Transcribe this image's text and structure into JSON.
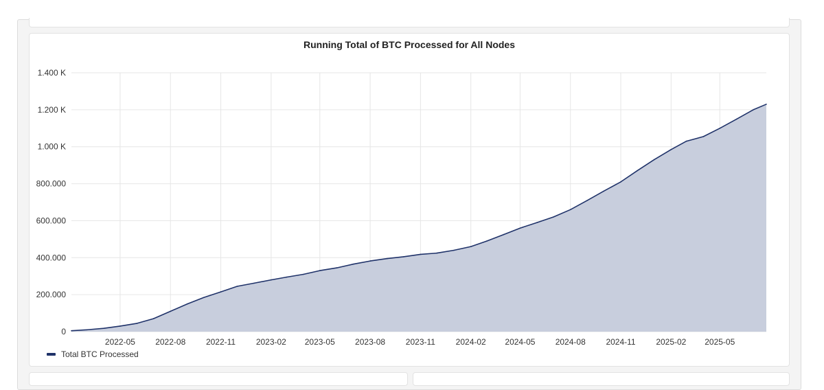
{
  "chart_data": {
    "type": "area",
    "title": "Running Total of BTC Processed for All Nodes",
    "xlabel": "",
    "ylabel": "",
    "ylim": [
      0,
      1400000
    ],
    "yticks": [
      {
        "value": 0,
        "label": "0"
      },
      {
        "value": 200000,
        "label": "200.000"
      },
      {
        "value": 400000,
        "label": "400.000"
      },
      {
        "value": 600000,
        "label": "600.000"
      },
      {
        "value": 800000,
        "label": "800.000"
      },
      {
        "value": 1000000,
        "label": "1.000 K"
      },
      {
        "value": 1200000,
        "label": "1.200 K"
      },
      {
        "value": 1400000,
        "label": "1.400 K"
      }
    ],
    "xlim": [
      "2022-02-01",
      "2025-07-25"
    ],
    "xticks": [
      "2022-05",
      "2022-08",
      "2022-11",
      "2023-02",
      "2023-05",
      "2023-08",
      "2023-11",
      "2024-02",
      "2024-05",
      "2024-08",
      "2024-11",
      "2025-02",
      "2025-05"
    ],
    "grid": true,
    "legend_position": "bottom-left",
    "series": [
      {
        "name": "Total BTC Processed",
        "color": "#1f3269",
        "fill": "#c8cedd",
        "x": [
          "2022-02-01",
          "2022-03-01",
          "2022-04-01",
          "2022-05-01",
          "2022-06-01",
          "2022-07-01",
          "2022-08-01",
          "2022-09-01",
          "2022-10-01",
          "2022-11-01",
          "2022-12-01",
          "2023-01-01",
          "2023-02-01",
          "2023-03-01",
          "2023-04-01",
          "2023-05-01",
          "2023-06-01",
          "2023-07-01",
          "2023-08-01",
          "2023-09-01",
          "2023-10-01",
          "2023-11-01",
          "2023-12-01",
          "2024-01-01",
          "2024-02-01",
          "2024-03-01",
          "2024-04-01",
          "2024-05-01",
          "2024-06-01",
          "2024-07-01",
          "2024-08-01",
          "2024-09-01",
          "2024-10-01",
          "2024-11-01",
          "2024-12-01",
          "2025-01-01",
          "2025-02-01",
          "2025-03-01",
          "2025-04-01",
          "2025-05-01",
          "2025-06-01",
          "2025-07-01",
          "2025-07-25"
        ],
        "values": [
          5000,
          10000,
          18000,
          30000,
          45000,
          70000,
          110000,
          150000,
          185000,
          215000,
          245000,
          262000,
          280000,
          295000,
          310000,
          330000,
          345000,
          365000,
          382000,
          395000,
          405000,
          418000,
          425000,
          440000,
          460000,
          490000,
          525000,
          560000,
          590000,
          620000,
          660000,
          710000,
          760000,
          810000,
          870000,
          930000,
          985000,
          1030000,
          1055000,
          1100000,
          1150000,
          1200000,
          1230000
        ]
      }
    ]
  }
}
